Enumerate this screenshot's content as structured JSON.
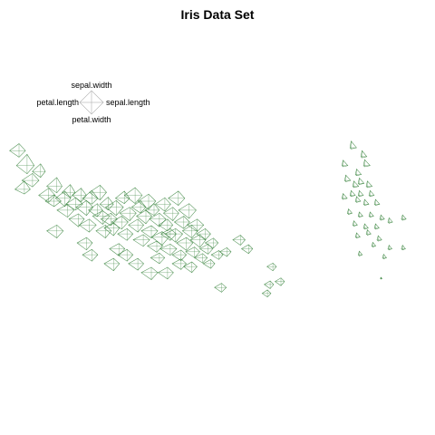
{
  "chart_data": {
    "type": "scatter",
    "title": "Iris Data Set",
    "glyph": "star",
    "variables": [
      "sepal.length",
      "sepal.width",
      "petal.length",
      "petal.width"
    ],
    "key": {
      "top_label": "sepal.width",
      "left_label": "petal.length",
      "right_label": "sepal.length",
      "bottom_label": "petal.width",
      "placement": "top-left"
    },
    "colors": {
      "glyph_stroke": "#2e7d32",
      "key_stroke": "#b0b0b0",
      "background": "#ffffff"
    },
    "grid": false,
    "xlim": [
      -3.4,
      4.2
    ],
    "ylim": [
      -1.6,
      1.6
    ],
    "points": [
      {
        "x": -3.05,
        "y": 0.7,
        "sl": 0.55,
        "sw": 0.6,
        "pl": 0.9,
        "pw": 0.55
      },
      {
        "x": -3.15,
        "y": 0.95,
        "sl": 0.6,
        "sw": 0.95,
        "pl": 0.9,
        "pw": 0.7
      },
      {
        "x": -3.2,
        "y": 0.55,
        "sl": 0.5,
        "sw": 0.7,
        "pl": 0.8,
        "pw": 0.4
      },
      {
        "x": -2.9,
        "y": 0.85,
        "sl": 0.4,
        "sw": 0.65,
        "pl": 0.7,
        "pw": 0.5
      },
      {
        "x": -2.75,
        "y": 0.45,
        "sl": 0.55,
        "sw": 0.6,
        "pl": 0.85,
        "pw": 0.6
      },
      {
        "x": -2.65,
        "y": 0.35,
        "sl": 0.6,
        "sw": 0.55,
        "pl": 0.75,
        "pw": 0.45
      },
      {
        "x": -2.6,
        "y": 0.6,
        "sl": 0.45,
        "sw": 0.75,
        "pl": 0.85,
        "pw": 0.55
      },
      {
        "x": -2.45,
        "y": 0.4,
        "sl": 0.5,
        "sw": 0.6,
        "pl": 0.8,
        "pw": 0.7
      },
      {
        "x": -2.4,
        "y": 0.2,
        "sl": 0.55,
        "sw": 0.5,
        "pl": 0.9,
        "pw": 0.6
      },
      {
        "x": -2.35,
        "y": 0.5,
        "sl": 0.4,
        "sw": 0.65,
        "pl": 0.7,
        "pw": 0.45
      },
      {
        "x": -2.25,
        "y": 0.3,
        "sl": 0.6,
        "sw": 0.55,
        "pl": 0.85,
        "pw": 0.5
      },
      {
        "x": -2.2,
        "y": 0.05,
        "sl": 0.5,
        "sw": 0.45,
        "pl": 0.8,
        "pw": 0.65
      },
      {
        "x": -2.15,
        "y": 0.45,
        "sl": 0.45,
        "sw": 0.6,
        "pl": 0.75,
        "pw": 0.55
      },
      {
        "x": -2.05,
        "y": 0.25,
        "sl": 0.55,
        "sw": 0.55,
        "pl": 0.9,
        "pw": 0.7
      },
      {
        "x": -2.0,
        "y": -0.05,
        "sl": 0.6,
        "sw": 0.5,
        "pl": 0.85,
        "pw": 0.6
      },
      {
        "x": -1.95,
        "y": 0.4,
        "sl": 0.5,
        "sw": 0.65,
        "pl": 0.8,
        "pw": 0.5
      },
      {
        "x": -1.85,
        "y": 0.2,
        "sl": 0.45,
        "sw": 0.55,
        "pl": 0.75,
        "pw": 0.55
      },
      {
        "x": -1.8,
        "y": 0.5,
        "sl": 0.55,
        "sw": 0.6,
        "pl": 0.9,
        "pw": 0.65
      },
      {
        "x": -1.75,
        "y": 0.1,
        "sl": 0.6,
        "sw": 0.45,
        "pl": 0.85,
        "pw": 0.7
      },
      {
        "x": -1.7,
        "y": -0.15,
        "sl": 0.5,
        "sw": 0.5,
        "pl": 0.8,
        "pw": 0.6
      },
      {
        "x": -1.65,
        "y": 0.3,
        "sl": 0.45,
        "sw": 0.6,
        "pl": 0.7,
        "pw": 0.5
      },
      {
        "x": -1.6,
        "y": 0.05,
        "sl": 0.55,
        "sw": 0.5,
        "pl": 0.85,
        "pw": 0.55
      },
      {
        "x": -1.55,
        "y": -0.1,
        "sl": 0.5,
        "sw": 0.45,
        "pl": 0.8,
        "pw": 0.65
      },
      {
        "x": -1.5,
        "y": 0.25,
        "sl": 0.6,
        "sw": 0.55,
        "pl": 0.9,
        "pw": 0.7
      },
      {
        "x": -1.4,
        "y": 0.0,
        "sl": 0.55,
        "sw": 0.5,
        "pl": 0.85,
        "pw": 0.6
      },
      {
        "x": -1.35,
        "y": 0.4,
        "sl": 0.45,
        "sw": 0.6,
        "pl": 0.75,
        "pw": 0.45
      },
      {
        "x": -1.3,
        "y": -0.2,
        "sl": 0.5,
        "sw": 0.45,
        "pl": 0.8,
        "pw": 0.55
      },
      {
        "x": -1.25,
        "y": 0.15,
        "sl": 0.55,
        "sw": 0.5,
        "pl": 0.85,
        "pw": 0.65
      },
      {
        "x": -1.15,
        "y": 0.45,
        "sl": 0.6,
        "sw": 0.65,
        "pl": 0.9,
        "pw": 0.7
      },
      {
        "x": -1.1,
        "y": -0.05,
        "sl": 0.5,
        "sw": 0.5,
        "pl": 0.8,
        "pw": 0.6
      },
      {
        "x": -1.05,
        "y": 0.25,
        "sl": 0.45,
        "sw": 0.55,
        "pl": 0.75,
        "pw": 0.5
      },
      {
        "x": -1.0,
        "y": -0.3,
        "sl": 0.55,
        "sw": 0.45,
        "pl": 0.85,
        "pw": 0.55
      },
      {
        "x": -0.95,
        "y": 0.1,
        "sl": 0.5,
        "sw": 0.5,
        "pl": 0.8,
        "pw": 0.65
      },
      {
        "x": -0.9,
        "y": 0.35,
        "sl": 0.6,
        "sw": 0.6,
        "pl": 0.9,
        "pw": 0.7
      },
      {
        "x": -0.85,
        "y": -0.15,
        "sl": 0.55,
        "sw": 0.45,
        "pl": 0.85,
        "pw": 0.6
      },
      {
        "x": -0.8,
        "y": 0.2,
        "sl": 0.45,
        "sw": 0.55,
        "pl": 0.75,
        "pw": 0.45
      },
      {
        "x": -0.75,
        "y": -0.4,
        "sl": 0.5,
        "sw": 0.4,
        "pl": 0.8,
        "pw": 0.55
      },
      {
        "x": -0.7,
        "y": 0.05,
        "sl": 0.55,
        "sw": 0.5,
        "pl": 0.85,
        "pw": 0.65
      },
      {
        "x": -0.65,
        "y": -0.25,
        "sl": 0.6,
        "sw": 0.45,
        "pl": 0.9,
        "pw": 0.7
      },
      {
        "x": -0.6,
        "y": 0.3,
        "sl": 0.5,
        "sw": 0.55,
        "pl": 0.8,
        "pw": 0.6
      },
      {
        "x": -0.55,
        "y": -0.05,
        "sl": 0.45,
        "sw": 0.5,
        "pl": 0.75,
        "pw": 0.5
      },
      {
        "x": -0.5,
        "y": -0.45,
        "sl": 0.55,
        "sw": 0.4,
        "pl": 0.85,
        "pw": 0.55
      },
      {
        "x": -0.45,
        "y": 0.15,
        "sl": 0.5,
        "sw": 0.5,
        "pl": 0.8,
        "pw": 0.65
      },
      {
        "x": -0.4,
        "y": -0.2,
        "sl": 0.6,
        "sw": 0.45,
        "pl": 0.9,
        "pw": 0.7
      },
      {
        "x": -0.35,
        "y": 0.4,
        "sl": 0.55,
        "sw": 0.6,
        "pl": 0.85,
        "pw": 0.6
      },
      {
        "x": -0.3,
        "y": -0.55,
        "sl": 0.45,
        "sw": 0.4,
        "pl": 0.75,
        "pw": 0.5
      },
      {
        "x": -0.25,
        "y": 0.0,
        "sl": 0.5,
        "sw": 0.5,
        "pl": 0.8,
        "pw": 0.55
      },
      {
        "x": -0.2,
        "y": -0.35,
        "sl": 0.55,
        "sw": 0.45,
        "pl": 0.85,
        "pw": 0.65
      },
      {
        "x": -0.15,
        "y": 0.2,
        "sl": 0.6,
        "sw": 0.55,
        "pl": 0.9,
        "pw": 0.7
      },
      {
        "x": -0.1,
        "y": -0.15,
        "sl": 0.5,
        "sw": 0.5,
        "pl": 0.8,
        "pw": 0.6
      },
      {
        "x": -0.05,
        "y": -0.5,
        "sl": 0.45,
        "sw": 0.4,
        "pl": 0.75,
        "pw": 0.5
      },
      {
        "x": 0.0,
        "y": -0.05,
        "sl": 0.55,
        "sw": 0.5,
        "pl": 0.85,
        "pw": 0.55
      },
      {
        "x": 0.05,
        "y": -0.3,
        "sl": 0.5,
        "sw": 0.45,
        "pl": 0.8,
        "pw": 0.65
      },
      {
        "x": 0.1,
        "y": -0.6,
        "sl": 0.4,
        "sw": 0.35,
        "pl": 0.7,
        "pw": 0.45
      },
      {
        "x": 0.15,
        "y": -0.2,
        "sl": 0.45,
        "sw": 0.45,
        "pl": 0.75,
        "pw": 0.5
      },
      {
        "x": 0.2,
        "y": -0.45,
        "sl": 0.4,
        "sw": 0.4,
        "pl": 0.7,
        "pw": 0.45
      },
      {
        "x": 0.25,
        "y": -0.7,
        "sl": 0.35,
        "sw": 0.35,
        "pl": 0.65,
        "pw": 0.4
      },
      {
        "x": 0.3,
        "y": -0.35,
        "sl": 0.4,
        "sw": 0.4,
        "pl": 0.7,
        "pw": 0.45
      },
      {
        "x": 0.4,
        "y": -0.55,
        "sl": 0.35,
        "sw": 0.35,
        "pl": 0.65,
        "pw": 0.4
      },
      {
        "x": 0.55,
        "y": -0.5,
        "sl": 0.35,
        "sw": 0.35,
        "pl": 0.6,
        "pw": 0.4
      },
      {
        "x": 0.8,
        "y": -0.3,
        "sl": 0.4,
        "sw": 0.4,
        "pl": 0.65,
        "pw": 0.45
      },
      {
        "x": 0.95,
        "y": -0.45,
        "sl": 0.35,
        "sw": 0.35,
        "pl": 0.6,
        "pw": 0.4
      },
      {
        "x": 1.4,
        "y": -0.75,
        "sl": 0.3,
        "sw": 0.3,
        "pl": 0.5,
        "pw": 0.35
      },
      {
        "x": 1.55,
        "y": -1.0,
        "sl": 0.3,
        "sw": 0.3,
        "pl": 0.5,
        "pw": 0.35
      },
      {
        "x": 1.35,
        "y": -1.05,
        "sl": 0.3,
        "sw": 0.3,
        "pl": 0.5,
        "pw": 0.35
      },
      {
        "x": 0.45,
        "y": -1.1,
        "sl": 0.4,
        "sw": 0.35,
        "pl": 0.6,
        "pw": 0.4
      },
      {
        "x": 1.3,
        "y": -1.2,
        "sl": 0.3,
        "sw": 0.3,
        "pl": 0.45,
        "pw": 0.3
      },
      {
        "x": -0.1,
        "y": -0.75,
        "sl": 0.45,
        "sw": 0.4,
        "pl": 0.7,
        "pw": 0.5
      },
      {
        "x": -0.55,
        "y": -0.85,
        "sl": 0.5,
        "sw": 0.45,
        "pl": 0.8,
        "pw": 0.55
      },
      {
        "x": -0.3,
        "y": -0.7,
        "sl": 0.45,
        "sw": 0.4,
        "pl": 0.75,
        "pw": 0.5
      },
      {
        "x": -1.55,
        "y": -0.7,
        "sl": 0.5,
        "sw": 0.45,
        "pl": 0.8,
        "pw": 0.6
      },
      {
        "x": -1.1,
        "y": -0.7,
        "sl": 0.5,
        "sw": 0.45,
        "pl": 0.8,
        "pw": 0.55
      },
      {
        "x": -0.85,
        "y": -0.85,
        "sl": 0.55,
        "sw": 0.45,
        "pl": 0.85,
        "pw": 0.6
      },
      {
        "x": -1.45,
        "y": -0.45,
        "sl": 0.5,
        "sw": 0.45,
        "pl": 0.8,
        "pw": 0.6
      },
      {
        "x": -2.05,
        "y": -0.35,
        "sl": 0.5,
        "sw": 0.45,
        "pl": 0.8,
        "pw": 0.6
      },
      {
        "x": -2.6,
        "y": -0.15,
        "sl": 0.55,
        "sw": 0.5,
        "pl": 0.85,
        "pw": 0.6
      },
      {
        "x": -1.95,
        "y": -0.55,
        "sl": 0.5,
        "sw": 0.45,
        "pl": 0.8,
        "pw": 0.55
      },
      {
        "x": -1.3,
        "y": -0.55,
        "sl": 0.5,
        "sw": 0.45,
        "pl": 0.8,
        "pw": 0.55
      },
      {
        "x": -0.7,
        "y": -0.6,
        "sl": 0.45,
        "sw": 0.4,
        "pl": 0.75,
        "pw": 0.5
      },
      {
        "x": -0.5,
        "y": -0.2,
        "sl": 0.5,
        "sw": 0.45,
        "pl": 0.8,
        "pw": 0.55
      },
      {
        "x": -3.3,
        "y": 1.2,
        "sl": 0.55,
        "sw": 0.6,
        "pl": 0.8,
        "pw": 0.55
      }
    ],
    "points_species3": [
      {
        "x": 2.85,
        "y": 1.25,
        "sl": 0.45,
        "sw": 0.55,
        "pl": 0.1,
        "pw": 0.1
      },
      {
        "x": 3.05,
        "y": 1.1,
        "sl": 0.4,
        "sw": 0.5,
        "pl": 0.1,
        "pw": 0.1
      },
      {
        "x": 2.7,
        "y": 0.95,
        "sl": 0.4,
        "sw": 0.45,
        "pl": 0.1,
        "pw": 0.1
      },
      {
        "x": 3.1,
        "y": 0.95,
        "sl": 0.45,
        "sw": 0.5,
        "pl": 0.1,
        "pw": 0.1
      },
      {
        "x": 2.95,
        "y": 0.8,
        "sl": 0.4,
        "sw": 0.45,
        "pl": 0.1,
        "pw": 0.1
      },
      {
        "x": 2.75,
        "y": 0.7,
        "sl": 0.4,
        "sw": 0.45,
        "pl": 0.1,
        "pw": 0.1
      },
      {
        "x": 3.0,
        "y": 0.65,
        "sl": 0.4,
        "sw": 0.45,
        "pl": 0.1,
        "pw": 0.1
      },
      {
        "x": 2.9,
        "y": 0.6,
        "sl": 0.4,
        "sw": 0.45,
        "pl": 0.1,
        "pw": 0.1
      },
      {
        "x": 3.15,
        "y": 0.6,
        "sl": 0.4,
        "sw": 0.45,
        "pl": 0.1,
        "pw": 0.1
      },
      {
        "x": 2.85,
        "y": 0.45,
        "sl": 0.35,
        "sw": 0.4,
        "pl": 0.1,
        "pw": 0.1
      },
      {
        "x": 3.0,
        "y": 0.45,
        "sl": 0.35,
        "sw": 0.4,
        "pl": 0.1,
        "pw": 0.1
      },
      {
        "x": 3.2,
        "y": 0.45,
        "sl": 0.35,
        "sw": 0.4,
        "pl": 0.1,
        "pw": 0.1
      },
      {
        "x": 2.7,
        "y": 0.4,
        "sl": 0.35,
        "sw": 0.4,
        "pl": 0.1,
        "pw": 0.1
      },
      {
        "x": 2.95,
        "y": 0.35,
        "sl": 0.35,
        "sw": 0.4,
        "pl": 0.1,
        "pw": 0.1
      },
      {
        "x": 3.1,
        "y": 0.3,
        "sl": 0.35,
        "sw": 0.4,
        "pl": 0.1,
        "pw": 0.1
      },
      {
        "x": 3.3,
        "y": 0.3,
        "sl": 0.35,
        "sw": 0.4,
        "pl": 0.1,
        "pw": 0.1
      },
      {
        "x": 2.8,
        "y": 0.15,
        "sl": 0.3,
        "sw": 0.35,
        "pl": 0.1,
        "pw": 0.1
      },
      {
        "x": 3.0,
        "y": 0.1,
        "sl": 0.3,
        "sw": 0.35,
        "pl": 0.1,
        "pw": 0.1
      },
      {
        "x": 3.2,
        "y": 0.1,
        "sl": 0.3,
        "sw": 0.35,
        "pl": 0.1,
        "pw": 0.1
      },
      {
        "x": 3.4,
        "y": 0.05,
        "sl": 0.3,
        "sw": 0.35,
        "pl": 0.1,
        "pw": 0.1
      },
      {
        "x": 2.9,
        "y": -0.05,
        "sl": 0.3,
        "sw": 0.35,
        "pl": 0.1,
        "pw": 0.1
      },
      {
        "x": 3.1,
        "y": -0.1,
        "sl": 0.3,
        "sw": 0.35,
        "pl": 0.1,
        "pw": 0.1
      },
      {
        "x": 3.3,
        "y": -0.1,
        "sl": 0.3,
        "sw": 0.35,
        "pl": 0.1,
        "pw": 0.1
      },
      {
        "x": 3.55,
        "y": 0.0,
        "sl": 0.3,
        "sw": 0.35,
        "pl": 0.1,
        "pw": 0.1
      },
      {
        "x": 3.8,
        "y": 0.05,
        "sl": 0.3,
        "sw": 0.35,
        "pl": 0.1,
        "pw": 0.1
      },
      {
        "x": 2.95,
        "y": -0.25,
        "sl": 0.3,
        "sw": 0.35,
        "pl": 0.1,
        "pw": 0.1
      },
      {
        "x": 3.15,
        "y": -0.2,
        "sl": 0.3,
        "sw": 0.35,
        "pl": 0.1,
        "pw": 0.1
      },
      {
        "x": 3.35,
        "y": -0.3,
        "sl": 0.3,
        "sw": 0.35,
        "pl": 0.1,
        "pw": 0.1
      },
      {
        "x": 3.25,
        "y": -0.4,
        "sl": 0.25,
        "sw": 0.3,
        "pl": 0.1,
        "pw": 0.1
      },
      {
        "x": 3.55,
        "y": -0.45,
        "sl": 0.25,
        "sw": 0.3,
        "pl": 0.1,
        "pw": 0.1
      },
      {
        "x": 3.8,
        "y": -0.45,
        "sl": 0.25,
        "sw": 0.3,
        "pl": 0.1,
        "pw": 0.1
      },
      {
        "x": 3.45,
        "y": -0.6,
        "sl": 0.25,
        "sw": 0.3,
        "pl": 0.1,
        "pw": 0.1
      },
      {
        "x": 3.0,
        "y": -0.55,
        "sl": 0.25,
        "sw": 0.3,
        "pl": 0.1,
        "pw": 0.1
      },
      {
        "x": 3.4,
        "y": -0.95,
        "sl": 0.1,
        "sw": 0.1,
        "pl": 0.05,
        "pw": 0.05
      }
    ]
  }
}
